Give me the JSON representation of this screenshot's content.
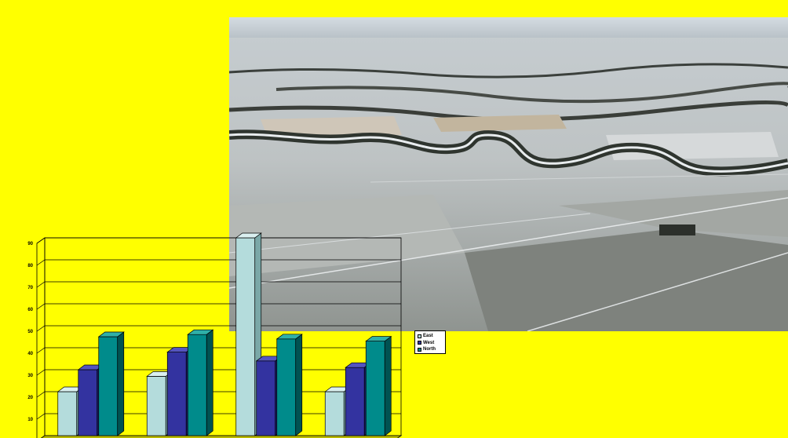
{
  "slide": {
    "background_color": "#FFFF00",
    "photo_icon": "aerial-snowy-farmland-river-photo"
  },
  "chart_data": {
    "type": "bar",
    "categories": [
      "",
      "",
      "",
      ""
    ],
    "series": [
      {
        "name": "East",
        "values": [
          20,
          27,
          90,
          20
        ],
        "color": "#B4DCDC",
        "side": "#7AA8A8",
        "top": "#DAF0F0"
      },
      {
        "name": "West",
        "values": [
          30,
          38,
          34,
          31
        ],
        "color": "#3333A0",
        "side": "#1C1C68",
        "top": "#5555C0"
      },
      {
        "name": "North",
        "values": [
          45,
          46,
          44,
          43
        ],
        "color": "#008B8B",
        "side": "#005252",
        "top": "#2FB0A8"
      }
    ],
    "y_ticks": [
      "0",
      "10",
      "20",
      "30",
      "40",
      "50",
      "60",
      "70",
      "80",
      "90"
    ],
    "ylim": [
      0,
      90
    ],
    "grid": true,
    "legend_position": "right"
  }
}
